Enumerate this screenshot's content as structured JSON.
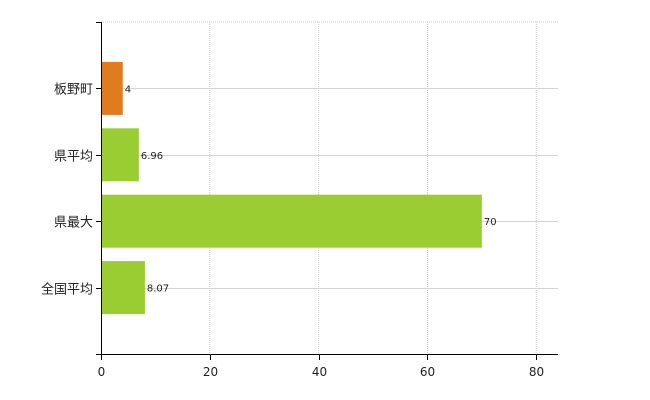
{
  "chart_data": {
    "type": "bar",
    "orientation": "horizontal",
    "categories": [
      "板野町",
      "県平均",
      "県最大",
      "全国平均"
    ],
    "values": [
      4,
      6.96,
      70,
      8.07
    ],
    "value_labels": [
      "4",
      "6.96",
      "70",
      "8.07"
    ],
    "bar_colors": [
      "#e07b20",
      "#9acd32",
      "#9acd32",
      "#9acd32"
    ],
    "xlim": [
      0,
      84
    ],
    "x_ticks": [
      0,
      20,
      40,
      60,
      80
    ],
    "x_tick_labels": [
      "0",
      "20",
      "40",
      "60",
      "80"
    ],
    "grid": true,
    "title": "",
    "xlabel": "",
    "ylabel": ""
  }
}
